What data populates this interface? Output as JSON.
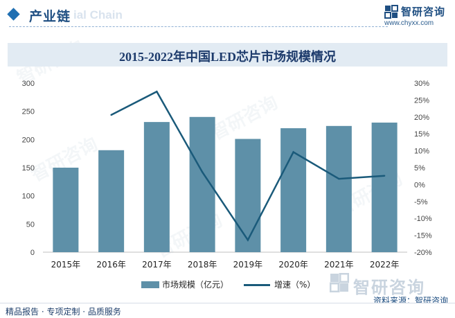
{
  "header": {
    "section_title": "产业链",
    "section_subtitle": "ial Chain",
    "brand_name": "智研咨询",
    "brand_url": "www.chyxx.com"
  },
  "chart_title": "2015-2022年中国LED芯片市场规模情况",
  "legend": {
    "bar_label": "市场规模（亿元）",
    "line_label": "增速（%）"
  },
  "watermark_text": "智研咨询",
  "source": "资料来源：智研咨询",
  "footer": "精品报告 · 专项定制 · 品质服务",
  "colors": {
    "bar": "#5e90a8",
    "line": "#1a5a7a",
    "accent": "#1f4f82",
    "title_band": "#e2ebf3"
  },
  "chart_data": {
    "type": "bar+line",
    "categories": [
      "2015年",
      "2016年",
      "2017年",
      "2018年",
      "2019年",
      "2020年",
      "2021年",
      "2022年"
    ],
    "series": [
      {
        "name": "市场规模（亿元）",
        "type": "bar",
        "axis": "left",
        "values": [
          150,
          181,
          231,
          240,
          201,
          220,
          224,
          230
        ]
      },
      {
        "name": "增速（%）",
        "type": "line",
        "axis": "right",
        "values": [
          null,
          20.6,
          27.5,
          3.7,
          -16.4,
          9.6,
          1.7,
          2.6
        ]
      }
    ],
    "y_left": {
      "min": 0,
      "max": 300,
      "ticks": [
        "0",
        "50",
        "100",
        "150",
        "200",
        "250",
        "300"
      ]
    },
    "y_right": {
      "min": -20,
      "max": 30,
      "ticks": [
        "-20%",
        "-15%",
        "-10%",
        "-5%",
        "0%",
        "5%",
        "10%",
        "15%",
        "20%",
        "25%",
        "30%"
      ]
    },
    "grid": false,
    "legend_position": "bottom"
  }
}
